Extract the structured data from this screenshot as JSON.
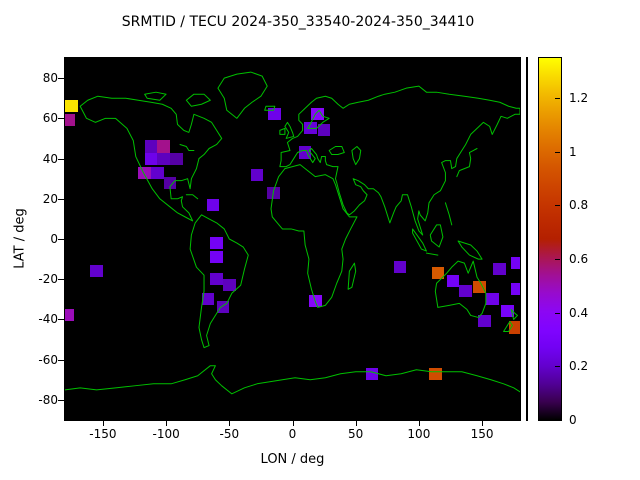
{
  "title": "SRMTID / TECU 2024-350_33540-2024-350_34410",
  "axes": {
    "xlabel": "LON / deg",
    "ylabel": "LAT / deg",
    "xlim": [
      -180,
      180
    ],
    "ylim": [
      -90,
      90
    ],
    "x_ticks": [
      -150,
      -100,
      -50,
      0,
      50,
      100,
      150
    ],
    "y_ticks": [
      -80,
      -60,
      -40,
      -20,
      0,
      20,
      40,
      60,
      80
    ]
  },
  "colorbar": {
    "min": 0,
    "max": 1.35,
    "ticks": [
      0,
      0.2,
      0.4,
      0.6,
      0.8,
      1,
      1.2
    ],
    "colormap": "gnuplot-pm3d black-purple-red-orange-yellow",
    "sample_colors": [
      "#000000",
      "#510096",
      "#7202f2",
      "#8c07f2",
      "#a11096",
      "#b42000",
      "#c63700",
      "#d55700",
      "#e48300",
      "#f2ba00",
      "#ffff00"
    ]
  },
  "map": {
    "background": "#000000",
    "coastline_color": "#00c000",
    "frame_color": "#000000"
  },
  "chart_data": {
    "type": "heatmap",
    "title": "SRMTID / TECU 2024-350_33540-2024-350_34410",
    "xlabel": "LON / deg",
    "ylabel": "LAT / deg",
    "x_range": [
      -180,
      180
    ],
    "y_range": [
      -90,
      90
    ],
    "value_unit": "TECU",
    "grid": false,
    "legend_position": "right-colorbar",
    "cell_size": {
      "lon_deg": 10,
      "lat_deg": 6
    },
    "points": [
      {
        "lon": -175,
        "lat": 66,
        "value": 1.3
      },
      {
        "lon": -177,
        "lat": 59,
        "value": 0.55
      },
      {
        "lon": -112,
        "lat": 46,
        "value": 0.18
      },
      {
        "lon": -102,
        "lat": 46,
        "value": 0.55
      },
      {
        "lon": -112,
        "lat": 40,
        "value": 0.25
      },
      {
        "lon": -102,
        "lat": 40,
        "value": 0.18
      },
      {
        "lon": -92,
        "lat": 40,
        "value": 0.15
      },
      {
        "lon": -117,
        "lat": 33,
        "value": 0.5
      },
      {
        "lon": -107,
        "lat": 33,
        "value": 0.2
      },
      {
        "lon": -97,
        "lat": 28,
        "value": 0.15
      },
      {
        "lon": -63,
        "lat": 17,
        "value": 0.25
      },
      {
        "lon": -28,
        "lat": 32,
        "value": 0.2
      },
      {
        "lon": -15,
        "lat": 23,
        "value": 0.15
      },
      {
        "lon": -14,
        "lat": 62,
        "value": 0.25
      },
      {
        "lon": 20,
        "lat": 62,
        "value": 0.38
      },
      {
        "lon": 14,
        "lat": 55,
        "value": 0.22
      },
      {
        "lon": 25,
        "lat": 54,
        "value": 0.18
      },
      {
        "lon": 10,
        "lat": 43,
        "value": 0.2
      },
      {
        "lon": -60,
        "lat": -2,
        "value": 0.28
      },
      {
        "lon": -60,
        "lat": -9,
        "value": 0.28
      },
      {
        "lon": -60,
        "lat": -20,
        "value": 0.2
      },
      {
        "lon": -50,
        "lat": -23,
        "value": 0.18
      },
      {
        "lon": -67,
        "lat": -30,
        "value": 0.2
      },
      {
        "lon": -55,
        "lat": -34,
        "value": 0.18
      },
      {
        "lon": 18,
        "lat": -31,
        "value": 0.38
      },
      {
        "lon": -155,
        "lat": -16,
        "value": 0.2
      },
      {
        "lon": -178,
        "lat": -38,
        "value": 0.5
      },
      {
        "lon": 85,
        "lat": -14,
        "value": 0.2
      },
      {
        "lon": 115,
        "lat": -17,
        "value": 0.95
      },
      {
        "lon": 127,
        "lat": -21,
        "value": 0.28
      },
      {
        "lon": 137,
        "lat": -26,
        "value": 0.2
      },
      {
        "lon": 148,
        "lat": -24,
        "value": 0.9
      },
      {
        "lon": 158,
        "lat": -30,
        "value": 0.25
      },
      {
        "lon": 170,
        "lat": -36,
        "value": 0.3
      },
      {
        "lon": 176,
        "lat": -44,
        "value": 0.85
      },
      {
        "lon": 152,
        "lat": -41,
        "value": 0.2
      },
      {
        "lon": 178,
        "lat": -12,
        "value": 0.28
      },
      {
        "lon": 164,
        "lat": -15,
        "value": 0.2
      },
      {
        "lon": 178,
        "lat": -25,
        "value": 0.28
      },
      {
        "lon": 63,
        "lat": -67,
        "value": 0.25
      },
      {
        "lon": 113,
        "lat": -67,
        "value": 0.9
      }
    ]
  }
}
